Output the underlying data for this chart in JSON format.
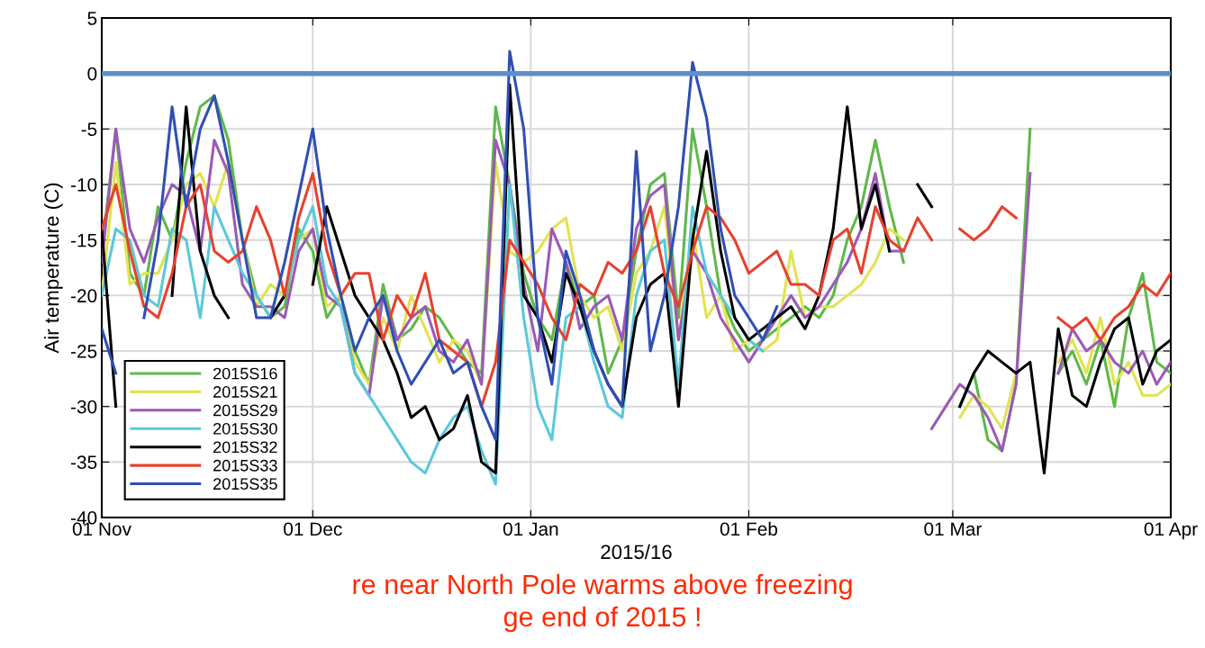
{
  "chart_data": {
    "type": "line",
    "ylabel": "Air temperature (C)",
    "xlabel": "2015/16",
    "x": [
      "2015-11-01",
      "2015-11-03",
      "2015-11-05",
      "2015-11-07",
      "2015-11-09",
      "2015-11-11",
      "2015-11-13",
      "2015-11-15",
      "2015-11-17",
      "2015-11-19",
      "2015-11-21",
      "2015-11-23",
      "2015-11-25",
      "2015-11-27",
      "2015-11-29",
      "2015-12-01",
      "2015-12-03",
      "2015-12-05",
      "2015-12-07",
      "2015-12-09",
      "2015-12-11",
      "2015-12-13",
      "2015-12-15",
      "2015-12-17",
      "2015-12-19",
      "2015-12-21",
      "2015-12-23",
      "2015-12-25",
      "2015-12-27",
      "2015-12-29",
      "2015-12-31",
      "2016-01-02",
      "2016-01-04",
      "2016-01-06",
      "2016-01-08",
      "2016-01-10",
      "2016-01-12",
      "2016-01-14",
      "2016-01-16",
      "2016-01-18",
      "2016-01-20",
      "2016-01-22",
      "2016-01-24",
      "2016-01-26",
      "2016-01-28",
      "2016-01-30",
      "2016-02-01",
      "2016-02-03",
      "2016-02-05",
      "2016-02-07",
      "2016-02-09",
      "2016-02-11",
      "2016-02-13",
      "2016-02-15",
      "2016-02-17",
      "2016-02-19",
      "2016-02-21",
      "2016-02-23",
      "2016-02-25",
      "2016-02-27",
      "2016-02-29",
      "2016-03-02",
      "2016-03-04",
      "2016-03-06",
      "2016-03-08",
      "2016-03-10",
      "2016-03-12",
      "2016-03-14",
      "2016-03-16",
      "2016-03-18",
      "2016-03-20",
      "2016-03-22",
      "2016-03-24",
      "2016-03-26",
      "2016-03-28",
      "2016-03-30",
      "2016-04-01"
    ],
    "series": [
      {
        "name": "2015S16",
        "color": "#5fb84a",
        "values": [
          -16,
          -5,
          -18,
          -20,
          -12,
          -15,
          -8,
          -3,
          -2,
          -6,
          -15,
          -20,
          -22,
          -21,
          -14,
          -16,
          -22,
          -20,
          -25,
          -28,
          -19,
          -24,
          -23,
          -21,
          -22,
          -24,
          -26,
          -27,
          -3,
          -10,
          -18,
          -22,
          -24,
          -17,
          -21,
          -20,
          -27,
          -24,
          -16,
          -10,
          -9,
          -22,
          -5,
          -12,
          -20,
          -23,
          -25,
          -24,
          -23,
          -22,
          -21,
          -22,
          -20,
          -15,
          -12,
          -6,
          -12,
          -17,
          null,
          null,
          null,
          -30,
          -27,
          -33,
          -34,
          -28,
          -5,
          null,
          -27,
          -25,
          -28,
          -24,
          -30,
          -22,
          -18,
          -26,
          -27
        ]
      },
      {
        "name": "2015S21",
        "color": "#e1e350",
        "values": [
          -20,
          -8,
          -19,
          -18,
          -18,
          -15,
          -10,
          -9,
          -12,
          -8,
          -15,
          -21,
          -19,
          -20,
          -15,
          -14,
          -21,
          -20,
          -26,
          -28,
          -22,
          -25,
          -20,
          -23,
          -26,
          -24,
          -25,
          -28,
          -8,
          -16,
          -17,
          -16,
          -14,
          -13,
          -20,
          -22,
          -21,
          -25,
          -18,
          -16,
          -12,
          -24,
          -14,
          -22,
          -20,
          -25,
          -24,
          -25,
          -24,
          -16,
          -22,
          -21,
          -21,
          -20,
          -19,
          -17,
          -14,
          -15,
          null,
          null,
          null,
          -31,
          -29,
          -30,
          -32,
          -27,
          null,
          null,
          -26,
          -24,
          -27,
          -22,
          -28,
          -26,
          -29,
          -29,
          -28
        ]
      },
      {
        "name": "2015S29",
        "color": "#9b59b6",
        "values": [
          -17,
          -5,
          -14,
          -17,
          -13,
          -10,
          -11,
          -16,
          -6,
          -9,
          -19,
          -21,
          -21,
          -22,
          -16,
          -14,
          -20,
          -21,
          -27,
          -29,
          -20,
          -24,
          -22,
          -21,
          -25,
          -26,
          -24,
          -28,
          -6,
          -10,
          -19,
          -25,
          -14,
          -17,
          -23,
          -21,
          -20,
          -24,
          -14,
          -11,
          -10,
          -24,
          -16,
          -18,
          -22,
          -24,
          -26,
          -24,
          -22,
          -20,
          -22,
          -21,
          -19,
          -17,
          -14,
          -9,
          -16,
          -16,
          null,
          -32,
          -30,
          -28,
          -29,
          -31,
          -34,
          -28,
          -9,
          null,
          -27,
          -23,
          -25,
          -24,
          -26,
          -27,
          -25,
          -28,
          -26
        ]
      },
      {
        "name": "2015S30",
        "color": "#5bc8d8",
        "values": [
          -20,
          -14,
          -15,
          -20,
          -21,
          -14,
          -15,
          -22,
          -12,
          -15,
          -18,
          -20,
          -22,
          -20,
          -15,
          -12,
          -19,
          -21,
          -27,
          -29,
          -31,
          -33,
          -35,
          -36,
          -33,
          -31,
          -30,
          -34,
          -37,
          -10,
          -22,
          -30,
          -33,
          -22,
          -21,
          -26,
          -30,
          -31,
          -20,
          -16,
          -15,
          -28,
          -12,
          -18,
          -20,
          -22,
          -24,
          -25,
          null,
          null,
          null,
          null,
          null,
          null,
          null,
          null,
          null,
          null,
          null,
          null,
          null,
          null,
          null,
          null,
          null,
          null,
          null,
          null,
          null,
          null,
          null,
          null,
          null,
          null,
          null,
          null,
          null
        ]
      },
      {
        "name": "2015S32",
        "color": "#000000",
        "values": [
          -14,
          -30,
          null,
          null,
          null,
          -20,
          -3,
          -16,
          -20,
          -22,
          null,
          null,
          -22,
          -20,
          null,
          -19,
          -12,
          -16,
          -20,
          -22,
          -24,
          -27,
          -31,
          -30,
          -33,
          -32,
          -29,
          -35,
          -36,
          -1,
          -20,
          -22,
          -26,
          -18,
          -21,
          -25,
          -28,
          -30,
          -22,
          -19,
          -18,
          -30,
          -15,
          -7,
          -16,
          -22,
          -24,
          -23,
          -22,
          -21,
          -23,
          -20,
          -14,
          -3,
          -14,
          -10,
          -16,
          null,
          -10,
          -12,
          null,
          -30,
          -27,
          -25,
          -26,
          -27,
          -26,
          -36,
          -23,
          -29,
          -30,
          -26,
          -23,
          -22,
          -28,
          -25,
          -24
        ]
      },
      {
        "name": "2015S33",
        "color": "#e8412e",
        "values": [
          -14,
          -10,
          -16,
          -21,
          -22,
          -18,
          -12,
          -10,
          -16,
          -17,
          -16,
          -12,
          -15,
          -20,
          -13,
          -9,
          -16,
          -20,
          -18,
          -18,
          -24,
          -20,
          -22,
          -18,
          -24,
          -25,
          -26,
          -30,
          -26,
          -15,
          -17,
          -19,
          -22,
          -24,
          -19,
          -20,
          -17,
          -18,
          -16,
          -12,
          -18,
          -21,
          -16,
          -12,
          -13,
          -15,
          -18,
          -17,
          -16,
          -19,
          -19,
          -20,
          -15,
          -14,
          -18,
          -12,
          -15,
          -16,
          -13,
          -15,
          null,
          -14,
          -15,
          -14,
          -12,
          -13,
          null,
          null,
          -22,
          -23,
          -22,
          -24,
          -22,
          -21,
          -19,
          -20,
          -18
        ]
      },
      {
        "name": "2015S35",
        "color": "#2f4fb4",
        "values": [
          -23,
          -27,
          null,
          -22,
          -15,
          -3,
          -12,
          -5,
          -2,
          -8,
          -15,
          -22,
          -22,
          -17,
          -11,
          -5,
          -14,
          -20,
          -25,
          -22,
          -20,
          -25,
          -28,
          -26,
          -24,
          -27,
          -26,
          -30,
          -33,
          2,
          -5,
          -22,
          -28,
          -16,
          -20,
          -25,
          -28,
          -30,
          -7,
          -25,
          -20,
          -12,
          1,
          -4,
          -14,
          -20,
          -22,
          -24,
          -21,
          null,
          null,
          null,
          null,
          null,
          null,
          null,
          null,
          null,
          null,
          null,
          null,
          null,
          null,
          null,
          null,
          null,
          null,
          null,
          null,
          null,
          null,
          null,
          null,
          null,
          null,
          null,
          null
        ]
      }
    ],
    "xlim": [
      "2015-11-01",
      "2016-04-01"
    ],
    "xticks": [
      {
        "value": "2015-11-01",
        "label": "01 Nov"
      },
      {
        "value": "2015-12-01",
        "label": "01 Dec"
      },
      {
        "value": "2016-01-01",
        "label": "01 Jan"
      },
      {
        "value": "2016-02-01",
        "label": "01 Feb"
      },
      {
        "value": "2016-03-01",
        "label": "01 Mar"
      },
      {
        "value": "2016-04-01",
        "label": "01 Apr"
      }
    ],
    "ylim": [
      -40,
      5
    ],
    "yticks": [
      -40,
      -35,
      -30,
      -25,
      -20,
      -15,
      -10,
      -5,
      0,
      5
    ],
    "ref_lines": [
      {
        "axis": "y",
        "value": 0,
        "color": "#5b8fc9"
      }
    ],
    "annotations": [
      "re near North Pole warms above freezing",
      "ge end of 2015 !"
    ],
    "grid": true,
    "legend": "bottom left",
    "line_style": "solid",
    "marker": "none"
  }
}
